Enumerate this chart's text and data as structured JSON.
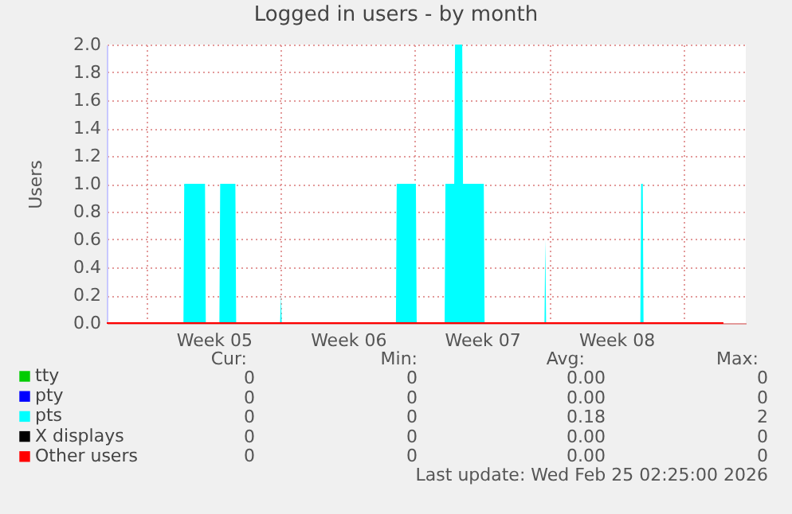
{
  "chart_data": {
    "type": "area",
    "title": "Logged in users - by month",
    "ylabel": "Users",
    "xlim": [
      "2026-01-23T22:00",
      "2026-02-26T06:00"
    ],
    "xticks": [
      {
        "value": "2026-01-26",
        "label": null
      },
      {
        "value": "2026-01-29T12:00",
        "label": "Week 05"
      },
      {
        "value": "2026-02-02",
        "label": null
      },
      {
        "value": "2026-02-05T12:00",
        "label": "Week 06"
      },
      {
        "value": "2026-02-09",
        "label": null
      },
      {
        "value": "2026-02-12T12:00",
        "label": "Week 07"
      },
      {
        "value": "2026-02-16",
        "label": null
      },
      {
        "value": "2026-02-19T12:00",
        "label": "Week 08"
      },
      {
        "value": "2026-02-23",
        "label": null
      }
    ],
    "ylim": [
      0,
      2
    ],
    "yticks": [
      {
        "value": 0,
        "label": "0.0"
      },
      {
        "value": 0.2,
        "label": "0.2"
      },
      {
        "value": 0.4,
        "label": "0.4"
      },
      {
        "value": 0.6,
        "label": "0.6"
      },
      {
        "value": 0.8,
        "label": "0.8"
      },
      {
        "value": 1,
        "label": "1.0"
      },
      {
        "value": 1.2,
        "label": "1.2"
      },
      {
        "value": 1.4,
        "label": "1.4"
      },
      {
        "value": 1.6,
        "label": "1.6"
      },
      {
        "value": 1.8,
        "label": "1.8"
      },
      {
        "value": 2,
        "label": "2.0"
      }
    ],
    "grid": true,
    "legend": "bottom",
    "series": [
      {
        "name": "tty",
        "type": "line",
        "color": "#00cc00"
      },
      {
        "name": "pty",
        "type": "line",
        "color": "#0000ff"
      },
      {
        "name": "pts",
        "color": "#00ffff",
        "x": [
          "2026-01-23T22:00",
          "2026-01-27T22:00",
          "2026-01-27T23:00",
          "2026-01-29T01:00",
          "2026-01-29T02:00",
          "2026-01-29T19:00",
          "2026-01-29T20:00",
          "2026-01-30T15:00",
          "2026-01-30T16:00",
          "2026-02-01T23:00",
          "2026-02-02T00:00",
          "2026-02-02T01:00",
          "2026-02-08T00:00",
          "2026-02-08T01:00",
          "2026-02-09T01:00",
          "2026-02-09T02:00",
          "2026-02-10T13:00",
          "2026-02-10T14:00",
          "2026-02-11T01:00",
          "2026-02-11T02:00",
          "2026-02-11T11:00",
          "2026-02-11T12:00",
          "2026-02-12T14:00",
          "2026-02-12T15:00",
          "2026-02-15T18:00",
          "2026-02-15T19:00",
          "2026-02-15T20:00",
          "2026-02-20T18:00",
          "2026-02-20T19:00",
          "2026-02-20T21:00",
          "2026-02-20T22:00",
          "2026-02-25T02:00"
        ],
        "values": [
          0,
          0,
          1,
          1,
          0,
          0,
          1,
          1,
          0,
          0,
          0.2,
          0,
          0,
          1,
          1,
          0,
          0,
          1,
          1,
          2,
          2,
          1,
          1,
          0,
          0,
          0.6,
          0,
          0,
          1,
          1,
          0,
          0
        ]
      },
      {
        "name": "X displays",
        "type": "line",
        "color": "#000000"
      },
      {
        "name": "Other users",
        "type": "line",
        "color": "#ff0000",
        "x": [
          "2026-01-23T22:00",
          "2026-02-25T02:00"
        ],
        "values": [
          0,
          0
        ]
      }
    ],
    "annotations": [
      "Cur:",
      "Min:",
      "Avg:",
      "Max:",
      "0",
      "0",
      "0.00",
      "0",
      "0",
      "0",
      "0.00",
      "0",
      "0",
      "0",
      "0.18",
      "2",
      "0",
      "0",
      "0.00",
      "0",
      "0",
      "0",
      "0.00",
      "0",
      "Last update: Wed Feb 25 02:25:00 2026"
    ]
  }
}
